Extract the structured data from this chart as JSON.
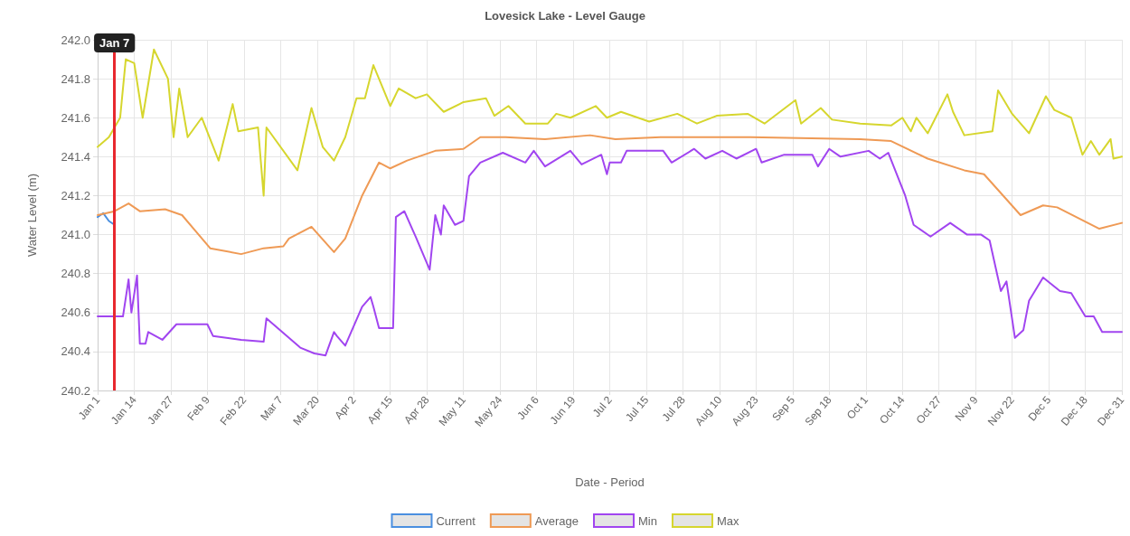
{
  "chart_data": {
    "type": "line",
    "title": "Lovesick Lake - Level Gauge",
    "xlabel": "Date - Period",
    "ylabel": "Water Level (m)",
    "xlim": [
      "--01-01",
      "--12-31"
    ],
    "xticks": [
      {
        "value": "--01-01",
        "label": "Jan 1"
      },
      {
        "value": "--01-14",
        "label": "Jan 14"
      },
      {
        "value": "--01-27",
        "label": "Jan 27"
      },
      {
        "value": "--02-09",
        "label": "Feb 9"
      },
      {
        "value": "--02-22",
        "label": "Feb 22"
      },
      {
        "value": "--03-07",
        "label": "Mar 7"
      },
      {
        "value": "--03-20",
        "label": "Mar 20"
      },
      {
        "value": "--04-02",
        "label": "Apr 2"
      },
      {
        "value": "--04-15",
        "label": "Apr 15"
      },
      {
        "value": "--04-28",
        "label": "Apr 28"
      },
      {
        "value": "--05-11",
        "label": "May 11"
      },
      {
        "value": "--05-24",
        "label": "May 24"
      },
      {
        "value": "--06-06",
        "label": "Jun 6"
      },
      {
        "value": "--06-19",
        "label": "Jun 19"
      },
      {
        "value": "--07-02",
        "label": "Jul 2"
      },
      {
        "value": "--07-15",
        "label": "Jul 15"
      },
      {
        "value": "--07-28",
        "label": "Jul 28"
      },
      {
        "value": "--08-10",
        "label": "Aug 10"
      },
      {
        "value": "--08-23",
        "label": "Aug 23"
      },
      {
        "value": "--09-05",
        "label": "Sep 5"
      },
      {
        "value": "--09-18",
        "label": "Sep 18"
      },
      {
        "value": "--10-01",
        "label": "Oct 1"
      },
      {
        "value": "--10-14",
        "label": "Oct 14"
      },
      {
        "value": "--10-27",
        "label": "Oct 27"
      },
      {
        "value": "--11-09",
        "label": "Nov 9"
      },
      {
        "value": "--11-22",
        "label": "Nov 22"
      },
      {
        "value": "--12-05",
        "label": "Dec 5"
      },
      {
        "value": "--12-18",
        "label": "Dec 18"
      },
      {
        "value": "--12-31",
        "label": "Dec 31"
      }
    ],
    "ylim": [
      240.2,
      242.0
    ],
    "yticks": [
      {
        "value": 240.2,
        "label": "240.2"
      },
      {
        "value": 240.4,
        "label": "240.4"
      },
      {
        "value": 240.6,
        "label": "240.6"
      },
      {
        "value": 240.8,
        "label": "240.8"
      },
      {
        "value": 241.0,
        "label": "241.0"
      },
      {
        "value": 241.2,
        "label": "241.2"
      },
      {
        "value": 241.4,
        "label": "241.4"
      },
      {
        "value": 241.6,
        "label": "241.6"
      },
      {
        "value": 241.8,
        "label": "241.8"
      },
      {
        "value": 242.0,
        "label": "242.0"
      }
    ],
    "grid": true,
    "legend": "bottom",
    "marker": "none",
    "line_style": "solid",
    "ref_lines": [
      {
        "axis": "x",
        "value": "--01-07",
        "label": "Jan 7",
        "color": "#e8282e"
      }
    ],
    "series": [
      {
        "name": "Current",
        "color": "#4a8fe0",
        "x": [
          "--01-01",
          "--01-02",
          "--01-03",
          "--01-05",
          "--01-07"
        ],
        "values": [
          241.09,
          241.1,
          241.11,
          241.07,
          241.05
        ]
      },
      {
        "name": "Average",
        "color": "#ef9a55",
        "x": [
          "--01-01",
          "--01-07",
          "--01-12",
          "--01-16",
          "--01-25",
          "--01-31",
          "--02-10",
          "--02-21",
          "--03-01",
          "--03-08",
          "--03-10",
          "--03-18",
          "--03-26",
          "--03-30",
          "--04-05",
          "--04-11",
          "--04-15",
          "--04-21",
          "--05-01",
          "--05-11",
          "--05-17",
          "--05-26",
          "--06-09",
          "--06-25",
          "--07-04",
          "--07-20",
          "--08-21",
          "--09-29",
          "--10-10",
          "--10-23",
          "--11-05",
          "--11-12",
          "--11-25",
          "--12-03",
          "--12-08",
          "--12-23",
          "--12-31"
        ],
        "values": [
          241.1,
          241.12,
          241.16,
          241.12,
          241.13,
          241.1,
          240.93,
          240.9,
          240.93,
          240.94,
          240.98,
          241.04,
          240.91,
          240.98,
          241.2,
          241.37,
          241.34,
          241.38,
          241.43,
          241.44,
          241.5,
          241.5,
          241.49,
          241.51,
          241.49,
          241.5,
          241.5,
          241.49,
          241.48,
          241.39,
          241.33,
          241.31,
          241.1,
          241.15,
          241.14,
          241.03,
          241.06
        ]
      },
      {
        "name": "Min",
        "color": "#a145f0",
        "x": [
          "--01-01",
          "--01-10",
          "--01-12",
          "--01-13",
          "--01-15",
          "--01-16",
          "--01-18",
          "--01-19",
          "--01-24",
          "--01-29",
          "--02-09",
          "--02-11",
          "--02-21",
          "--03-01",
          "--03-02",
          "--03-14",
          "--03-19",
          "--03-23",
          "--03-26",
          "--03-27",
          "--03-30",
          "--04-05",
          "--04-08",
          "--04-09",
          "--04-11",
          "--04-16",
          "--04-17",
          "--04-20",
          "--04-24",
          "--04-29",
          "--05-01",
          "--05-03",
          "--05-04",
          "--05-08",
          "--05-11",
          "--05-13",
          "--05-17",
          "--05-25",
          "--06-02",
          "--06-05",
          "--06-09",
          "--06-18",
          "--06-22",
          "--06-29",
          "--07-01",
          "--07-02",
          "--07-06",
          "--07-08",
          "--07-21",
          "--07-24",
          "--08-01",
          "--08-05",
          "--08-11",
          "--08-16",
          "--08-23",
          "--08-25",
          "--09-02",
          "--09-12",
          "--09-14",
          "--09-18",
          "--09-22",
          "--10-02",
          "--10-06",
          "--10-09",
          "--10-15",
          "--10-18",
          "--10-24",
          "--10-31",
          "--11-06",
          "--11-11",
          "--11-14",
          "--11-18",
          "--11-20",
          "--11-23",
          "--11-26",
          "--11-28",
          "--12-03",
          "--12-09",
          "--12-13",
          "--12-18",
          "--12-21",
          "--12-24",
          "--12-31"
        ],
        "values": [
          240.58,
          240.58,
          240.77,
          240.6,
          240.79,
          240.44,
          240.44,
          240.5,
          240.46,
          240.54,
          240.54,
          240.48,
          240.46,
          240.45,
          240.57,
          240.42,
          240.39,
          240.38,
          240.5,
          240.48,
          240.43,
          240.63,
          240.68,
          240.63,
          240.52,
          240.52,
          241.09,
          241.12,
          240.99,
          240.82,
          241.1,
          241.0,
          241.15,
          241.05,
          241.07,
          241.3,
          241.37,
          241.42,
          241.37,
          241.43,
          241.35,
          241.43,
          241.36,
          241.41,
          241.31,
          241.37,
          241.37,
          241.43,
          241.43,
          241.37,
          241.44,
          241.39,
          241.43,
          241.39,
          241.44,
          241.37,
          241.41,
          241.41,
          241.35,
          241.44,
          241.4,
          241.43,
          241.39,
          241.42,
          241.2,
          241.05,
          240.99,
          241.06,
          241.0,
          241.0,
          240.97,
          240.71,
          240.76,
          240.47,
          240.51,
          240.66,
          240.78,
          240.71,
          240.7,
          240.58,
          240.58,
          240.5,
          240.5
        ]
      },
      {
        "name": "Max",
        "color": "#d6d62e",
        "x": [
          "--01-01",
          "--01-05",
          "--01-09",
          "--01-11",
          "--01-14",
          "--01-17",
          "--01-21",
          "--01-26",
          "--01-28",
          "--01-30",
          "--02-02",
          "--02-07",
          "--02-13",
          "--02-18",
          "--02-20",
          "--02-27",
          "--03-01",
          "--03-02",
          "--03-13",
          "--03-18",
          "--03-22",
          "--03-26",
          "--03-30",
          "--04-03",
          "--04-06",
          "--04-09",
          "--04-15",
          "--04-18",
          "--04-24",
          "--04-28",
          "--05-04",
          "--05-11",
          "--05-19",
          "--05-22",
          "--05-27",
          "--06-02",
          "--06-10",
          "--06-13",
          "--06-18",
          "--06-27",
          "--07-01",
          "--07-06",
          "--07-16",
          "--07-26",
          "--08-02",
          "--08-09",
          "--08-20",
          "--08-26",
          "--09-06",
          "--09-08",
          "--09-15",
          "--09-19",
          "--09-29",
          "--10-10",
          "--10-14",
          "--10-17",
          "--10-19",
          "--10-23",
          "--10-30",
          "--11-01",
          "--11-05",
          "--11-15",
          "--11-17",
          "--11-22",
          "--11-28",
          "--12-04",
          "--12-07",
          "--12-13",
          "--12-17",
          "--12-20",
          "--12-23",
          "--12-27",
          "--12-28",
          "--12-31"
        ],
        "values": [
          241.45,
          241.5,
          241.6,
          241.9,
          241.88,
          241.6,
          241.95,
          241.8,
          241.5,
          241.75,
          241.5,
          241.6,
          241.38,
          241.67,
          241.53,
          241.55,
          241.2,
          241.55,
          241.33,
          241.65,
          241.45,
          241.38,
          241.5,
          241.7,
          241.7,
          241.87,
          241.66,
          241.75,
          241.7,
          241.72,
          241.63,
          241.68,
          241.7,
          241.61,
          241.66,
          241.57,
          241.57,
          241.62,
          241.6,
          241.66,
          241.6,
          241.63,
          241.58,
          241.62,
          241.57,
          241.61,
          241.62,
          241.57,
          241.69,
          241.57,
          241.65,
          241.59,
          241.57,
          241.56,
          241.6,
          241.53,
          241.6,
          241.52,
          241.72,
          241.63,
          241.51,
          241.53,
          241.74,
          241.62,
          241.52,
          241.71,
          241.64,
          241.6,
          241.41,
          241.48,
          241.41,
          241.49,
          241.39,
          241.4
        ]
      }
    ]
  }
}
